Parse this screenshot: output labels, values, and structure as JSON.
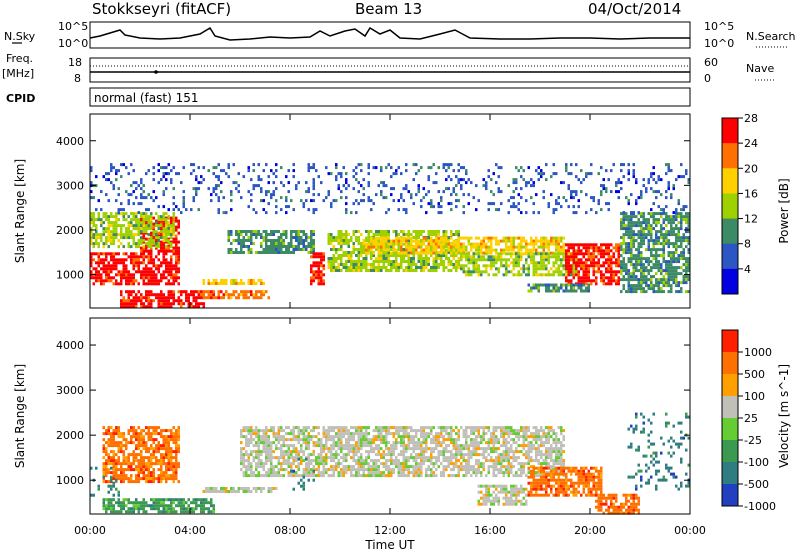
{
  "header": {
    "station": "Stokkseyri (fitACF)",
    "beam": "Beam 13",
    "date": "04/Oct/2014"
  },
  "nsky_panel": {
    "left_label": "N.Sky",
    "left_ticks": [
      "10^5",
      "10^0"
    ],
    "right_ticks": [
      "10^5",
      "10^0"
    ],
    "right_label": "N.Search"
  },
  "freq_panel": {
    "left_label_top": "Freq.",
    "left_label_unit": "[MHz]",
    "left_ticks": [
      "18",
      "8"
    ],
    "right_ticks": [
      "60",
      "0"
    ],
    "right_label": "Nave"
  },
  "cpid_panel": {
    "label": "CPID",
    "mode_text": "normal (fast) 151"
  },
  "chart_data": [
    {
      "type": "heatmap",
      "name": "power",
      "ylabel": "Slant Range [km]",
      "ylim": [
        250,
        4600
      ],
      "yticks": [
        1000,
        2000,
        3000,
        4000
      ],
      "xlim": [
        0,
        24
      ],
      "xtick_labels": [
        "00:00",
        "04:00",
        "08:00",
        "12:00",
        "16:00",
        "20:00",
        "00:00"
      ],
      "colorbar": {
        "label": "Power [dB]",
        "ticks": [
          "4",
          "8",
          "12",
          "16",
          "20",
          "24",
          "28"
        ],
        "colors": [
          "#0000e0",
          "#2c56c4",
          "#3c8a66",
          "#9fd000",
          "#ffd000",
          "#ff7000",
          "#ff0000"
        ]
      },
      "regions": [
        {
          "x0": 0.0,
          "x1": 3.6,
          "y0": 800,
          "y1": 1500,
          "level": 6
        },
        {
          "x0": 2.0,
          "x1": 3.6,
          "y0": 1500,
          "y1": 2300,
          "level": 6
        },
        {
          "x0": 1.2,
          "x1": 4.6,
          "y0": 300,
          "y1": 650,
          "level": 6
        },
        {
          "x0": 0.0,
          "x1": 3.4,
          "y0": 1600,
          "y1": 2400,
          "level": 3
        },
        {
          "x0": 4.5,
          "x1": 7.2,
          "y0": 500,
          "y1": 650,
          "level": 5
        },
        {
          "x0": 4.5,
          "x1": 7.0,
          "y0": 800,
          "y1": 900,
          "level": 4
        },
        {
          "x0": 5.5,
          "x1": 9.0,
          "y0": 1500,
          "y1": 2000,
          "level": 2
        },
        {
          "x0": 8.8,
          "x1": 9.4,
          "y0": 800,
          "y1": 1500,
          "level": 6
        },
        {
          "x0": 9.5,
          "x1": 14.8,
          "y0": 1100,
          "y1": 2000,
          "level": 3
        },
        {
          "x0": 11.0,
          "x1": 19.0,
          "y0": 1500,
          "y1": 1850,
          "level": 4
        },
        {
          "x0": 14.8,
          "x1": 19.5,
          "y0": 1000,
          "y1": 1500,
          "level": 3
        },
        {
          "x0": 19.0,
          "x1": 21.2,
          "y0": 800,
          "y1": 1700,
          "level": 6
        },
        {
          "x0": 21.2,
          "x1": 24.0,
          "y0": 600,
          "y1": 2400,
          "level": 2
        },
        {
          "x0": 17.5,
          "x1": 20.0,
          "y0": 600,
          "y1": 800,
          "level": 2
        },
        {
          "x0": 0.0,
          "x1": 24.0,
          "y0": 2400,
          "y1": 3500,
          "level": 1
        }
      ]
    },
    {
      "type": "heatmap",
      "name": "velocity",
      "ylabel": "Slant Range [km]",
      "ylim": [
        250,
        4600
      ],
      "yticks": [
        1000,
        2000,
        3000,
        4000
      ],
      "xlim": [
        0,
        24
      ],
      "xlabel": "Time UT",
      "xtick_labels": [
        "00:00",
        "04:00",
        "08:00",
        "12:00",
        "16:00",
        "20:00",
        "00:00"
      ],
      "colorbar": {
        "label": "Velocity [m s^-1]",
        "ticks": [
          "1000",
          "500",
          "100",
          "25",
          "-25",
          "-100",
          "-500",
          "-1000"
        ],
        "colors": [
          "#2040c0",
          "#2f7d82",
          "#3c9a50",
          "#66cc33",
          "#c0c0b8",
          "#ffa000",
          "#ff7000",
          "#ff2000"
        ]
      },
      "regions": [
        {
          "x0": 0.5,
          "x1": 3.6,
          "y0": 1000,
          "y1": 2200,
          "level": 6
        },
        {
          "x0": 0.0,
          "x1": 1.2,
          "y0": 700,
          "y1": 1300,
          "level": 1
        },
        {
          "x0": 0.5,
          "x1": 5.0,
          "y0": 300,
          "y1": 600,
          "level": 2
        },
        {
          "x0": 4.5,
          "x1": 7.5,
          "y0": 750,
          "y1": 850,
          "level": 4
        },
        {
          "x0": 6.0,
          "x1": 19.0,
          "y0": 1100,
          "y1": 2200,
          "level": 4
        },
        {
          "x0": 8.0,
          "x1": 9.0,
          "y0": 800,
          "y1": 1500,
          "level": 1
        },
        {
          "x0": 15.5,
          "x1": 17.5,
          "y0": 500,
          "y1": 900,
          "level": 4
        },
        {
          "x0": 17.5,
          "x1": 20.5,
          "y0": 700,
          "y1": 1300,
          "level": 6
        },
        {
          "x0": 20.2,
          "x1": 22.0,
          "y0": 300,
          "y1": 700,
          "level": 6
        },
        {
          "x0": 21.5,
          "x1": 24.0,
          "y0": 800,
          "y1": 2500,
          "level": 1
        }
      ]
    }
  ]
}
